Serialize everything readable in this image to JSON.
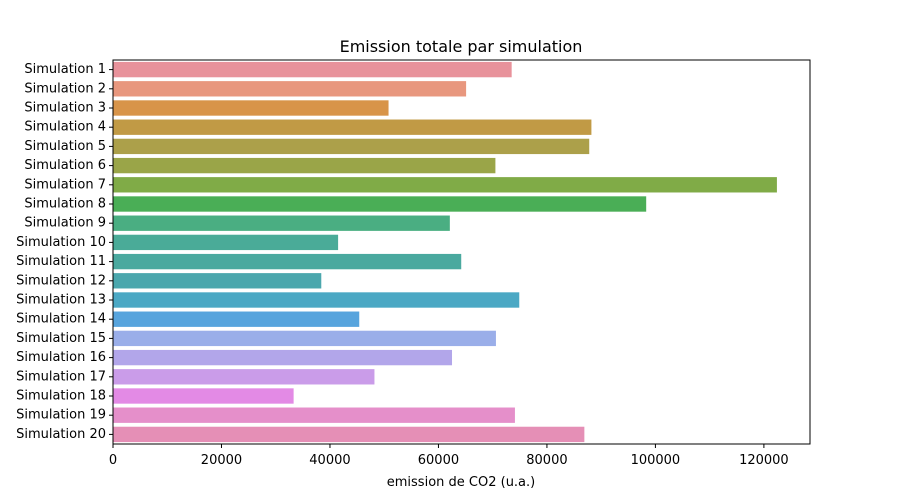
{
  "chart_data": {
    "type": "bar",
    "orientation": "horizontal",
    "title": "Emission totale par simulation",
    "xlabel": "emission de CO2 (u.a.)",
    "ylabel": "",
    "xlim": [
      0,
      128500
    ],
    "xticks": [
      0,
      20000,
      40000,
      60000,
      80000,
      100000,
      120000
    ],
    "grid": false,
    "categories": [
      "Simulation 1",
      "Simulation 2",
      "Simulation 3",
      "Simulation 4",
      "Simulation 5",
      "Simulation 6",
      "Simulation 7",
      "Simulation 8",
      "Simulation 9",
      "Simulation 10",
      "Simulation 11",
      "Simulation 12",
      "Simulation 13",
      "Simulation 14",
      "Simulation 15",
      "Simulation 16",
      "Simulation 17",
      "Simulation 18",
      "Simulation 19",
      "Simulation 20"
    ],
    "values": [
      73500,
      65100,
      50800,
      88200,
      87800,
      70500,
      122400,
      98300,
      62100,
      41500,
      64200,
      38400,
      74900,
      45400,
      70600,
      62500,
      48200,
      33300,
      74100,
      86900
    ],
    "colors": [
      "#e8929b",
      "#e8977e",
      "#d89449",
      "#c19a45",
      "#aca04a",
      "#9aa548",
      "#80ab47",
      "#4aae56",
      "#4aae82",
      "#4aab98",
      "#4aa99f",
      "#4ba7ad",
      "#4ba8c4",
      "#57a4dd",
      "#9aaee9",
      "#b2a6ea",
      "#ca9ce9",
      "#e38ae5",
      "#e58fca",
      "#e58fb6"
    ]
  }
}
